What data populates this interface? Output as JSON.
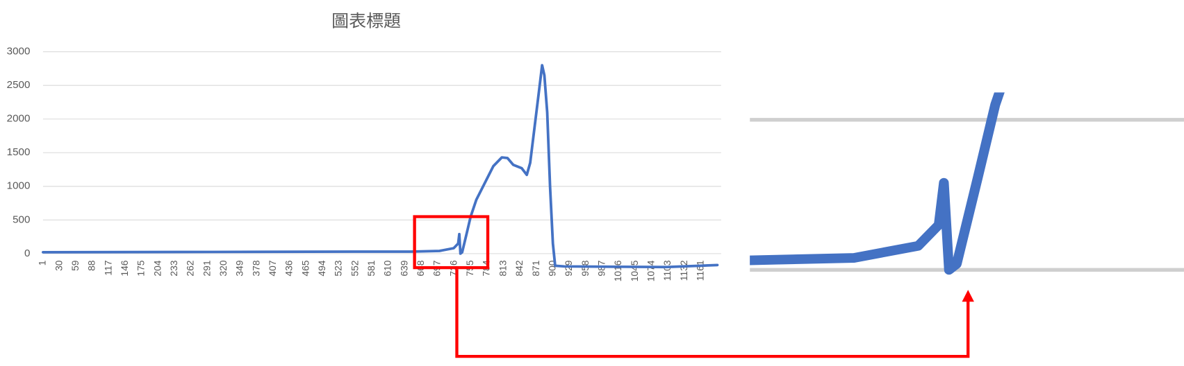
{
  "chart_data": {
    "type": "line",
    "title": "圖表標題",
    "x": [
      1,
      300,
      560,
      650,
      700,
      725,
      733,
      735,
      737,
      740,
      748,
      755,
      765,
      780,
      795,
      810,
      820,
      830,
      845,
      854,
      860,
      868,
      876,
      881,
      885,
      890,
      895,
      900,
      904,
      920,
      1100,
      1190
    ],
    "series": [
      {
        "color": "#4472c4",
        "values": [
          20,
          25,
          30,
          30,
          40,
          80,
          150,
          290,
          0,
          20,
          300,
          550,
          800,
          1050,
          1300,
          1430,
          1420,
          1320,
          1270,
          1170,
          1350,
          1900,
          2450,
          2800,
          2650,
          2100,
          1000,
          150,
          -180,
          -190,
          -200,
          -170
        ]
      }
    ],
    "xlim": [
      1,
      1190
    ],
    "xticks": [
      1,
      30,
      59,
      88,
      117,
      146,
      175,
      204,
      233,
      262,
      291,
      320,
      349,
      378,
      407,
      436,
      465,
      494,
      523,
      552,
      581,
      610,
      639,
      668,
      697,
      726,
      755,
      784,
      813,
      842,
      871,
      900,
      929,
      958,
      987,
      1016,
      1045,
      1074,
      1103,
      1132,
      1161
    ],
    "ylim": [
      0,
      3000
    ],
    "yticks": [
      0,
      500,
      1000,
      1500,
      2000,
      2500,
      3000
    ],
    "grid": true
  }
}
